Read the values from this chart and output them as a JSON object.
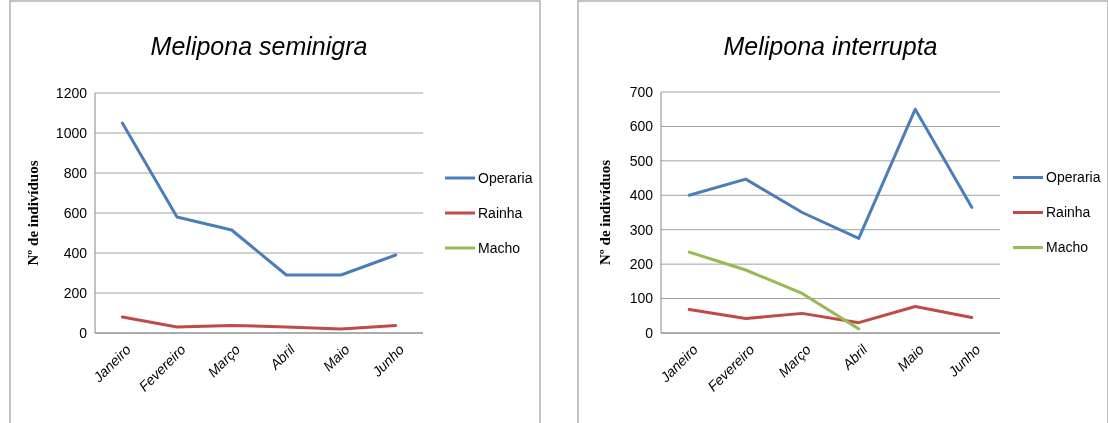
{
  "chart_data": [
    {
      "type": "line",
      "title": "Melipona seminigra",
      "ylabel": "Nº de indivíduos",
      "categories": [
        "Janeiro",
        "Fevereiro",
        "Março",
        "Abril",
        "Maio",
        "Junho"
      ],
      "ylim": [
        0,
        1200
      ],
      "yticks": [
        0,
        200,
        400,
        600,
        800,
        1000,
        1200
      ],
      "grid": "y",
      "legend": "right",
      "series": [
        {
          "name": "Operaria",
          "color": "#4a7ebb",
          "values": [
            1050,
            580,
            515,
            290,
            290,
            390
          ]
        },
        {
          "name": "Rainha",
          "color": "#be4b48",
          "values": [
            80,
            30,
            38,
            30,
            20,
            38
          ]
        },
        {
          "name": "Macho",
          "color": "#98b954",
          "values": [
            null,
            null,
            null,
            null,
            null,
            null
          ]
        }
      ]
    },
    {
      "type": "line",
      "title": "Melipona interrupta",
      "ylabel": "Nº de indivíduos",
      "categories": [
        "Janeiro",
        "Fevereiro",
        "Março",
        "Abril",
        "Maio",
        "Junho"
      ],
      "ylim": [
        0,
        700
      ],
      "yticks": [
        0,
        100,
        200,
        300,
        400,
        500,
        600,
        700
      ],
      "grid": "y",
      "legend": "right",
      "series": [
        {
          "name": "Operaria",
          "color": "#4a7ebb",
          "values": [
            400,
            447,
            350,
            275,
            650,
            365
          ]
        },
        {
          "name": "Rainha",
          "color": "#be4b48",
          "values": [
            68,
            42,
            57,
            30,
            77,
            45
          ]
        },
        {
          "name": "Macho",
          "color": "#98b954",
          "values": [
            235,
            183,
            115,
            12,
            null,
            null
          ]
        }
      ]
    }
  ]
}
